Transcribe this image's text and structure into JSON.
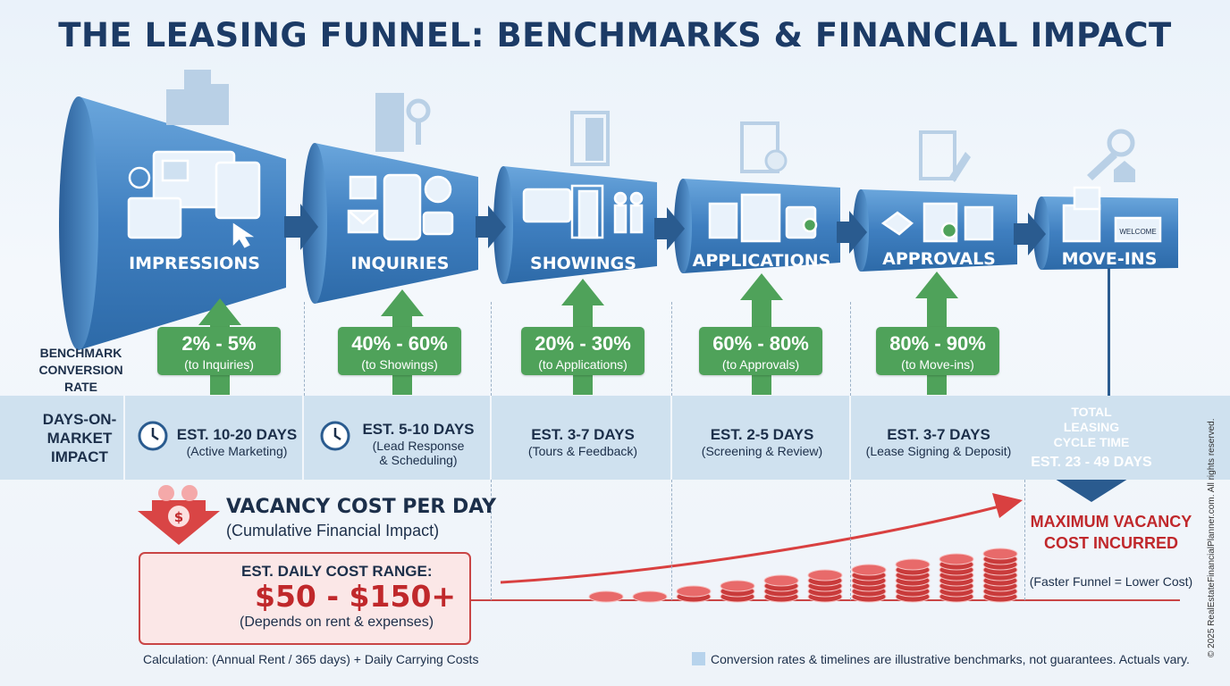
{
  "title": "THE LEASING FUNNEL: BENCHMARKS & FINANCIAL IMPACT",
  "side_labels": {
    "benchmark": "BENCHMARK CONVERSION RATE",
    "days": "DAYS-ON- MARKET IMPACT"
  },
  "stages": [
    {
      "label": "IMPRESSIONS",
      "icon": "browser-listings-icon"
    },
    {
      "label": "INQUIRIES",
      "icon": "phone-message-icon"
    },
    {
      "label": "SHOWINGS",
      "icon": "door-tour-icon"
    },
    {
      "label": "APPLICATIONS",
      "icon": "application-form-icon"
    },
    {
      "label": "APPROVALS",
      "icon": "handshake-approval-icon"
    },
    {
      "label": "MOVE-INS",
      "icon": "boxes-welcome-icon"
    }
  ],
  "conversions": [
    {
      "rate": "2% - 5%",
      "note": "(to Inquiries)"
    },
    {
      "rate": "40% - 60%",
      "note": "(to Showings)"
    },
    {
      "rate": "20% - 30%",
      "note": "(to Applications)"
    },
    {
      "rate": "60% - 80%",
      "note": "(to Approvals)"
    },
    {
      "rate": "80% - 90%",
      "note": "(to Move-ins)"
    }
  ],
  "days": [
    {
      "est": "EST. 10-20 DAYS",
      "note": "(Active Marketing)"
    },
    {
      "est": "EST. 5-10 DAYS",
      "note": "(Lead Response & Scheduling)"
    },
    {
      "est": "EST. 3-7 DAYS",
      "note": "(Tours & Feedback)"
    },
    {
      "est": "EST. 2-5 DAYS",
      "note": "(Screening & Review)"
    },
    {
      "est": "EST. 3-7 DAYS",
      "note": "(Lease Signing & Deposit)"
    }
  ],
  "total": {
    "label": "TOTAL LEASING CYCLE TIME",
    "value": "EST. 23 - 49 DAYS"
  },
  "vacancy": {
    "title": "VACANCY COST PER DAY",
    "subtitle": "(Cumulative Financial Impact)",
    "box_label": "EST. DAILY COST RANGE:",
    "box_value": "$50 - $150+",
    "box_note": "(Depends on rent & expenses)",
    "calculation": "Calculation: (Annual Rent / 365 days) + Daily Carrying Costs"
  },
  "max_cost": {
    "label": "MAXIMUM VACANCY COST INCURRED",
    "note": "(Faster Funnel = Lower Cost)"
  },
  "disclaimer": "Conversion rates & timelines are illustrative benchmarks, not guarantees. Actuals vary.",
  "copyright": "© 2025 RealEstateFinancialPlanner.com. All rights reserved.",
  "colors": {
    "funnel": "#3f7fc0",
    "conversion": "#4fa25a",
    "cost": "#c0282b",
    "band": "#cfe1ef",
    "total": "#2a5b8f"
  }
}
